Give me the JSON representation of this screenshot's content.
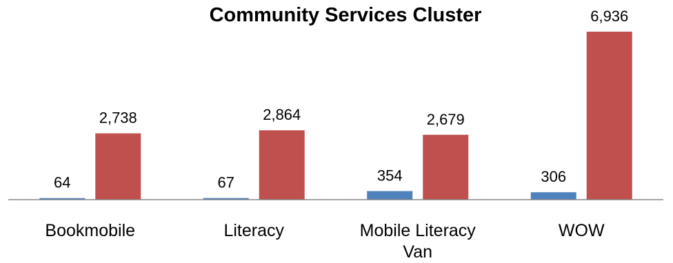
{
  "chart_data": {
    "type": "bar",
    "title": "Community Services Cluster",
    "categories": [
      [
        "Bookmobile"
      ],
      [
        "Literacy"
      ],
      [
        "Mobile Literacy",
        "Van"
      ],
      [
        "WOW"
      ]
    ],
    "series": [
      {
        "values": [
          64,
          67,
          354,
          306
        ],
        "labels": [
          "64",
          "67",
          "354",
          "306"
        ],
        "color": "#4f81bd"
      },
      {
        "values": [
          2738,
          2864,
          2679,
          6936
        ],
        "labels": [
          "2,738",
          "2,864",
          "2,679",
          "6,936"
        ],
        "color": "#c0504d"
      }
    ],
    "ylim": [
      0,
      7000
    ],
    "grid": false,
    "legend": "none",
    "axis_color": "#868686"
  }
}
